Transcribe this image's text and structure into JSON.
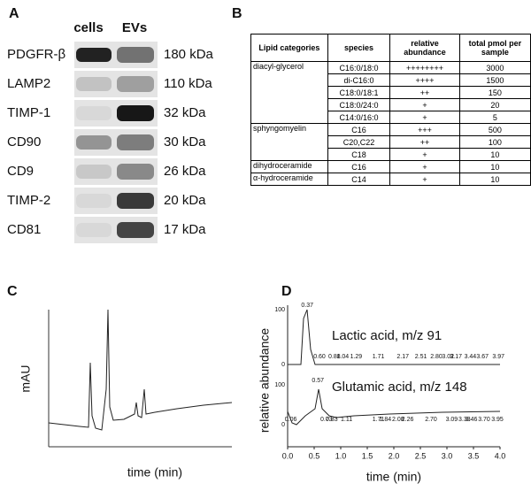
{
  "panel_a": {
    "label": "A",
    "columns": [
      "cells",
      "EVs"
    ],
    "rows": [
      {
        "protein": "PDGFR-β",
        "size": "180 kDa"
      },
      {
        "protein": "LAMP2",
        "size": "110 kDa"
      },
      {
        "protein": "TIMP-1",
        "size": "32 kDa"
      },
      {
        "protein": "CD90",
        "size": "30 kDa"
      },
      {
        "protein": "CD9",
        "size": "26 kDa"
      },
      {
        "protein": "TIMP-2",
        "size": "20 kDa"
      },
      {
        "protein": "CD81",
        "size": "17 kDa"
      }
    ]
  },
  "panel_b": {
    "label": "B",
    "header": [
      "Lipid categories",
      "species",
      "relative abundance",
      "total pmol per sample"
    ],
    "groups": [
      {
        "category": "diacyl-glycerol",
        "rows": [
          [
            "C16:0/18:0",
            "++++++++",
            "3000"
          ],
          [
            "di-C16:0",
            "++++",
            "1500"
          ],
          [
            "C18:0/18:1",
            "++",
            "150"
          ],
          [
            "C18:0/24:0",
            "+",
            "20"
          ],
          [
            "C14:0/16:0",
            "+",
            "5"
          ]
        ]
      },
      {
        "category": "sphyngomyelin",
        "rows": [
          [
            "C16",
            "+++",
            "500"
          ],
          [
            "C20,C22",
            "++",
            "100"
          ],
          [
            "C18",
            "+",
            "10"
          ]
        ]
      },
      {
        "category": "dihydroceramide",
        "rows": [
          [
            "C16",
            "+",
            "10"
          ]
        ]
      },
      {
        "category": "α-hydroceramide",
        "rows": [
          [
            "C14",
            "+",
            "10"
          ]
        ]
      }
    ]
  },
  "panel_c": {
    "label": "C",
    "y_label": "mAU",
    "x_label": "time (min)"
  },
  "panel_d": {
    "label": "D",
    "y_label": "relative abundance",
    "x_label": "time (min)",
    "xticks": [
      "0.0",
      "0.5",
      "1.0",
      "1.5",
      "2.0",
      "2.5",
      "3.0",
      "3.5",
      "4.0"
    ],
    "traces": [
      {
        "title": "Lactic acid, m/z 91",
        "yticks": [
          "100",
          "0"
        ],
        "peaks": [
          "0.37",
          "0.60",
          "0.88",
          "1.04",
          "1.29",
          "1.71",
          "2.17",
          "2.51",
          "2.80",
          "3.02",
          "3.17",
          "3.44",
          "3.67",
          "3.97"
        ]
      },
      {
        "title": "Glutamic acid, m/z 148",
        "yticks": [
          "100",
          "0"
        ],
        "peaks": [
          "0.06",
          "0.57",
          "0.73",
          "0.83",
          "1.11",
          "1.71",
          "1.84",
          "2.08",
          "2.26",
          "2.70",
          "3.09",
          "3.33",
          "3.46",
          "3.70",
          "3.95"
        ]
      }
    ]
  }
}
